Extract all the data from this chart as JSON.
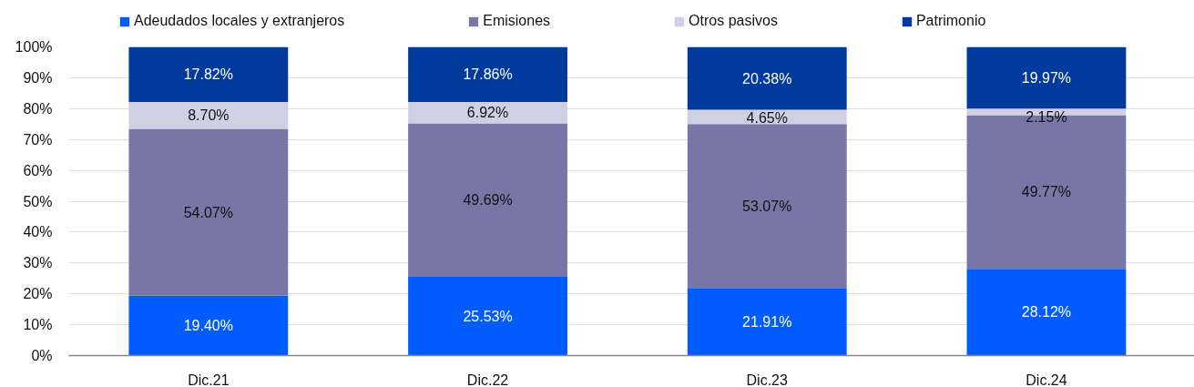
{
  "chart_data": {
    "type": "bar",
    "stacked": true,
    "categories": [
      "Dic.21",
      "Dic.22",
      "Dic.23",
      "Dic.24"
    ],
    "series": [
      {
        "name": "Adeudados locales y extranjeros",
        "color": "#005cff",
        "values": [
          19.4,
          25.53,
          21.91,
          28.12
        ],
        "value_labels": [
          "19.40%",
          "25.53%",
          "21.91%",
          "28.12%"
        ]
      },
      {
        "name": "Emisiones",
        "color": "#7776a6",
        "values": [
          54.07,
          49.69,
          53.07,
          49.77
        ],
        "value_labels": [
          "54.07%",
          "49.69%",
          "53.07%",
          "49.77%"
        ]
      },
      {
        "name": "Otros pasivos",
        "color": "#d0d0e4",
        "values": [
          8.7,
          6.92,
          4.65,
          2.15
        ],
        "value_labels": [
          "8.70%",
          "6.92%",
          "4.65%",
          "2.15%"
        ]
      },
      {
        "name": "Patrimonio",
        "color": "#003a9c",
        "values": [
          17.82,
          17.86,
          20.38,
          19.97
        ],
        "value_labels": [
          "17.82%",
          "17.86%",
          "20.38%",
          "19.97%"
        ]
      }
    ],
    "ylim": [
      0,
      100
    ],
    "yticks": [
      {
        "value": 0,
        "label": "0%"
      },
      {
        "value": 10,
        "label": "10%"
      },
      {
        "value": 20,
        "label": "20%"
      },
      {
        "value": 30,
        "label": "30%"
      },
      {
        "value": 40,
        "label": "40%"
      },
      {
        "value": 50,
        "label": "50%"
      },
      {
        "value": 60,
        "label": "60%"
      },
      {
        "value": 70,
        "label": "70%"
      },
      {
        "value": 80,
        "label": "80%"
      },
      {
        "value": 90,
        "label": "90%"
      },
      {
        "value": 100,
        "label": "100%"
      }
    ],
    "grid": "y",
    "legend": "top"
  }
}
